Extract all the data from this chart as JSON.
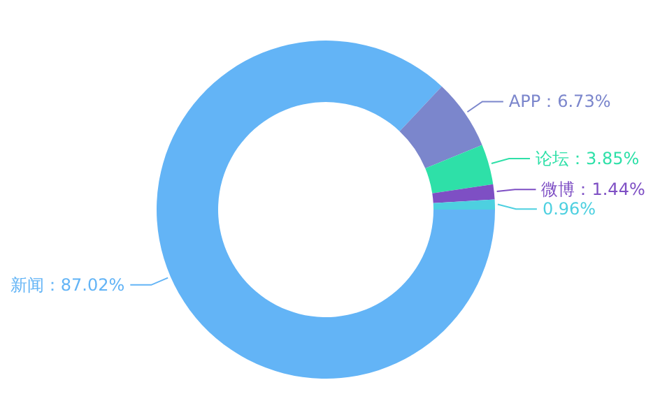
{
  "chart_data": {
    "type": "donut",
    "categories": [
      "新闻",
      "APP",
      "论坛",
      "微博",
      null
    ],
    "values": [
      87.02,
      6.73,
      3.85,
      1.44,
      0.96
    ],
    "value_labels": [
      "：87.02%",
      "：6.73%",
      "：3.85%",
      "：1.44%",
      "0.96%"
    ],
    "colors": [
      "#63b4f6",
      "#7b86cc",
      "#2ee0a8",
      "#7e4fc4",
      "#4dd0e0"
    ]
  }
}
